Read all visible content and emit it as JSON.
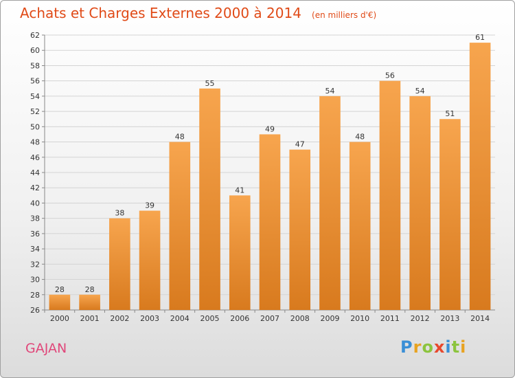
{
  "header": {
    "title": "Achats et Charges Externes 2000 à 2014",
    "unit": "(en milliers d'€)"
  },
  "footer": {
    "commune": "GAJAN",
    "logo_letters": [
      "P",
      "r",
      "o",
      "x",
      "i",
      "t",
      "i"
    ],
    "logo_colors": [
      "#3a8fd6",
      "#e8a321",
      "#8cc43e",
      "#e8482d",
      "#3a8fd6",
      "#8cc43e",
      "#e8a321"
    ]
  },
  "chart_data": {
    "type": "bar",
    "title": "Achats et Charges Externes 2000 à 2014",
    "subtitle": "(en milliers d'€)",
    "categories": [
      "2000",
      "2001",
      "2002",
      "2003",
      "2004",
      "2005",
      "2006",
      "2007",
      "2008",
      "2009",
      "2010",
      "2011",
      "2012",
      "2013",
      "2014"
    ],
    "values": [
      28,
      28,
      38,
      39,
      48,
      55,
      41,
      49,
      47,
      54,
      48,
      56,
      54,
      51,
      61
    ],
    "ylim": [
      26,
      62
    ],
    "ytick_step": 2,
    "grid": true,
    "bar_color_top": "#f7a54e",
    "bar_color_bottom": "#d87a1e"
  }
}
